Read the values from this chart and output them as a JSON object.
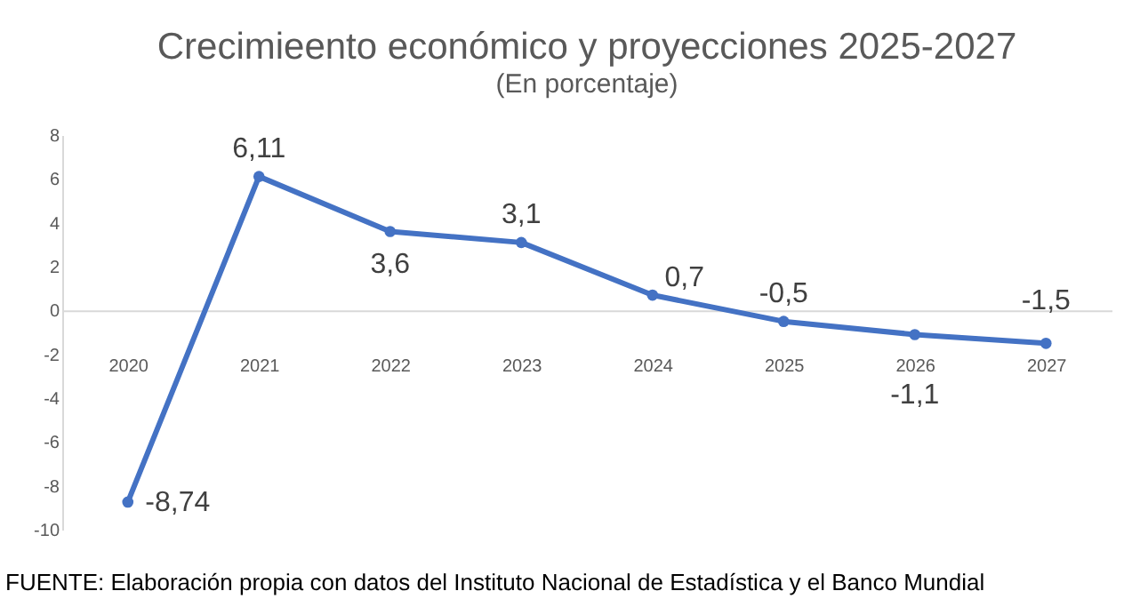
{
  "chart_data": {
    "type": "line",
    "title": "Crecimieento económico y proyecciones 2025-2027",
    "subtitle": "(En porcentaje)",
    "categories": [
      "2020",
      "2021",
      "2022",
      "2023",
      "2024",
      "2025",
      "2026",
      "2027"
    ],
    "series": [
      {
        "color": "#4472c4",
        "values": [
          -8.74,
          6.11,
          3.6,
          3.1,
          0.7,
          -0.5,
          -1.1,
          -1.5
        ],
        "value_labels": [
          "-8,74",
          "6,11",
          "3,6",
          "3,1",
          "0,7",
          "-0,5",
          "-1,1",
          "-1,5"
        ]
      }
    ],
    "ylim": [
      -10,
      8
    ],
    "yticks": [
      -10,
      -8,
      -6,
      -4,
      -2,
      0,
      2,
      4,
      6,
      8
    ],
    "marker": "circle",
    "line_style": "solid",
    "grid": false,
    "legend": false,
    "annotations": [
      "FUENTE: Elaboración propia con datos del Instituto Nacional de Estadística y el Banco Mundial"
    ]
  }
}
